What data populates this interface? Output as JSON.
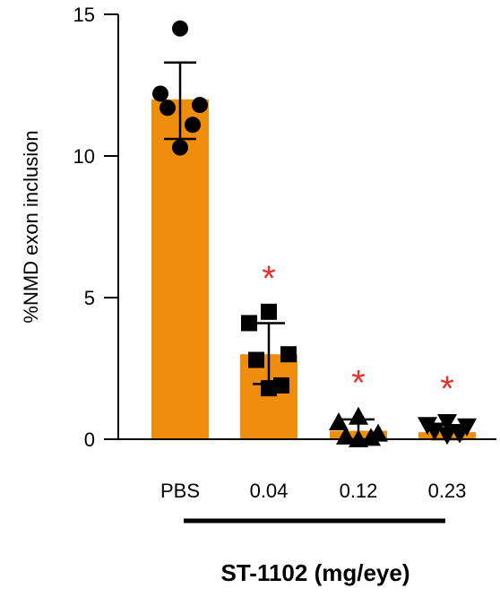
{
  "chart_data": {
    "type": "bar",
    "title": "",
    "ylabel": "%NMD exon inclusion",
    "xlabel": "ST-1102 (mg/eye)",
    "ylim": [
      0,
      15
    ],
    "yticks": [
      0,
      5,
      10,
      15
    ],
    "categories": [
      "PBS",
      "0.04",
      "0.12",
      "0.23"
    ],
    "values": [
      12.0,
      3.0,
      0.3,
      0.25
    ],
    "error_upper": [
      13.3,
      4.1,
      0.7,
      0.5
    ],
    "error_lower": [
      10.6,
      1.95,
      0.0,
      0.0
    ],
    "points": [
      [
        14.5,
        12.2,
        11.8,
        11.7,
        11.1,
        10.3
      ],
      [
        4.5,
        4.1,
        3.0,
        2.8,
        1.9,
        1.8
      ],
      [
        0.8,
        0.6,
        0.2,
        0.1,
        0.05,
        0.0
      ],
      [
        0.6,
        0.5,
        0.45,
        0.3,
        0.2,
        0.15
      ]
    ],
    "point_markers": [
      "circle",
      "square",
      "triangle-up",
      "triangle-down"
    ],
    "significance_marks": [
      "",
      "*",
      "*",
      "*"
    ],
    "grid": false,
    "colors": {
      "bar": "#ef8e0c",
      "points": "#000000",
      "significance": "#e8302e",
      "axis": "#000000"
    }
  }
}
